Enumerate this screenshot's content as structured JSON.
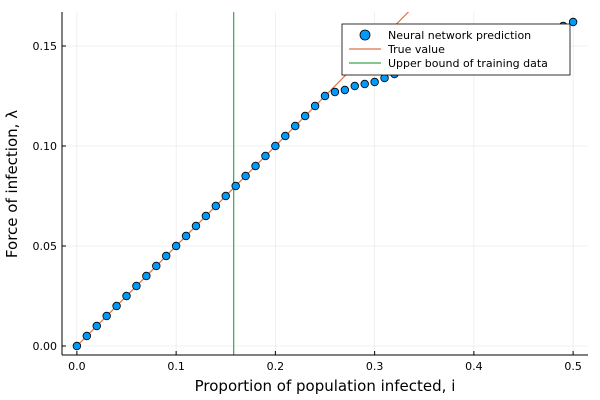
{
  "chart_data": {
    "type": "scatter",
    "title": "",
    "xlabel": "Proportion of population infected, i",
    "ylabel": "Force of infection, λ",
    "xlim": [
      -0.015,
      0.515
    ],
    "ylim": [
      -0.0045,
      0.167
    ],
    "xticks": [
      0.0,
      0.1,
      0.2,
      0.3,
      0.4,
      0.5
    ],
    "xtick_labels": [
      "0.0",
      "0.1",
      "0.2",
      "0.3",
      "0.4",
      "0.5"
    ],
    "yticks": [
      0.0,
      0.05,
      0.1,
      0.15
    ],
    "ytick_labels": [
      "0.00",
      "0.05",
      "0.10",
      "0.15"
    ],
    "grid": true,
    "legend_position": "top-right",
    "series": [
      {
        "name": "Neural network prediction",
        "kind": "scatter",
        "color": "#009AFA",
        "x": [
          0.0,
          0.01,
          0.02,
          0.03,
          0.04,
          0.05,
          0.06,
          0.07,
          0.08,
          0.09,
          0.1,
          0.11,
          0.12,
          0.13,
          0.14,
          0.15,
          0.16,
          0.17,
          0.18,
          0.19,
          0.2,
          0.21,
          0.22,
          0.23,
          0.24,
          0.25,
          0.26,
          0.27,
          0.28,
          0.29,
          0.3,
          0.31,
          0.32,
          0.49,
          0.5
        ],
        "y": [
          0.0,
          0.005,
          0.01,
          0.015,
          0.02,
          0.025,
          0.03,
          0.035,
          0.04,
          0.045,
          0.05,
          0.055,
          0.06,
          0.065,
          0.07,
          0.075,
          0.08,
          0.085,
          0.09,
          0.095,
          0.1,
          0.105,
          0.11,
          0.115,
          0.12,
          0.125,
          0.127,
          0.128,
          0.13,
          0.131,
          0.132,
          0.134,
          0.136,
          0.16,
          0.162
        ]
      },
      {
        "name": "True value",
        "kind": "line",
        "color": "#E26F46",
        "x": [
          0.0,
          0.5
        ],
        "y": [
          0.0,
          0.25
        ]
      },
      {
        "name": "Upper bound of training data",
        "kind": "vline",
        "color": "#3DA44D",
        "x": [
          0.158
        ]
      }
    ]
  }
}
